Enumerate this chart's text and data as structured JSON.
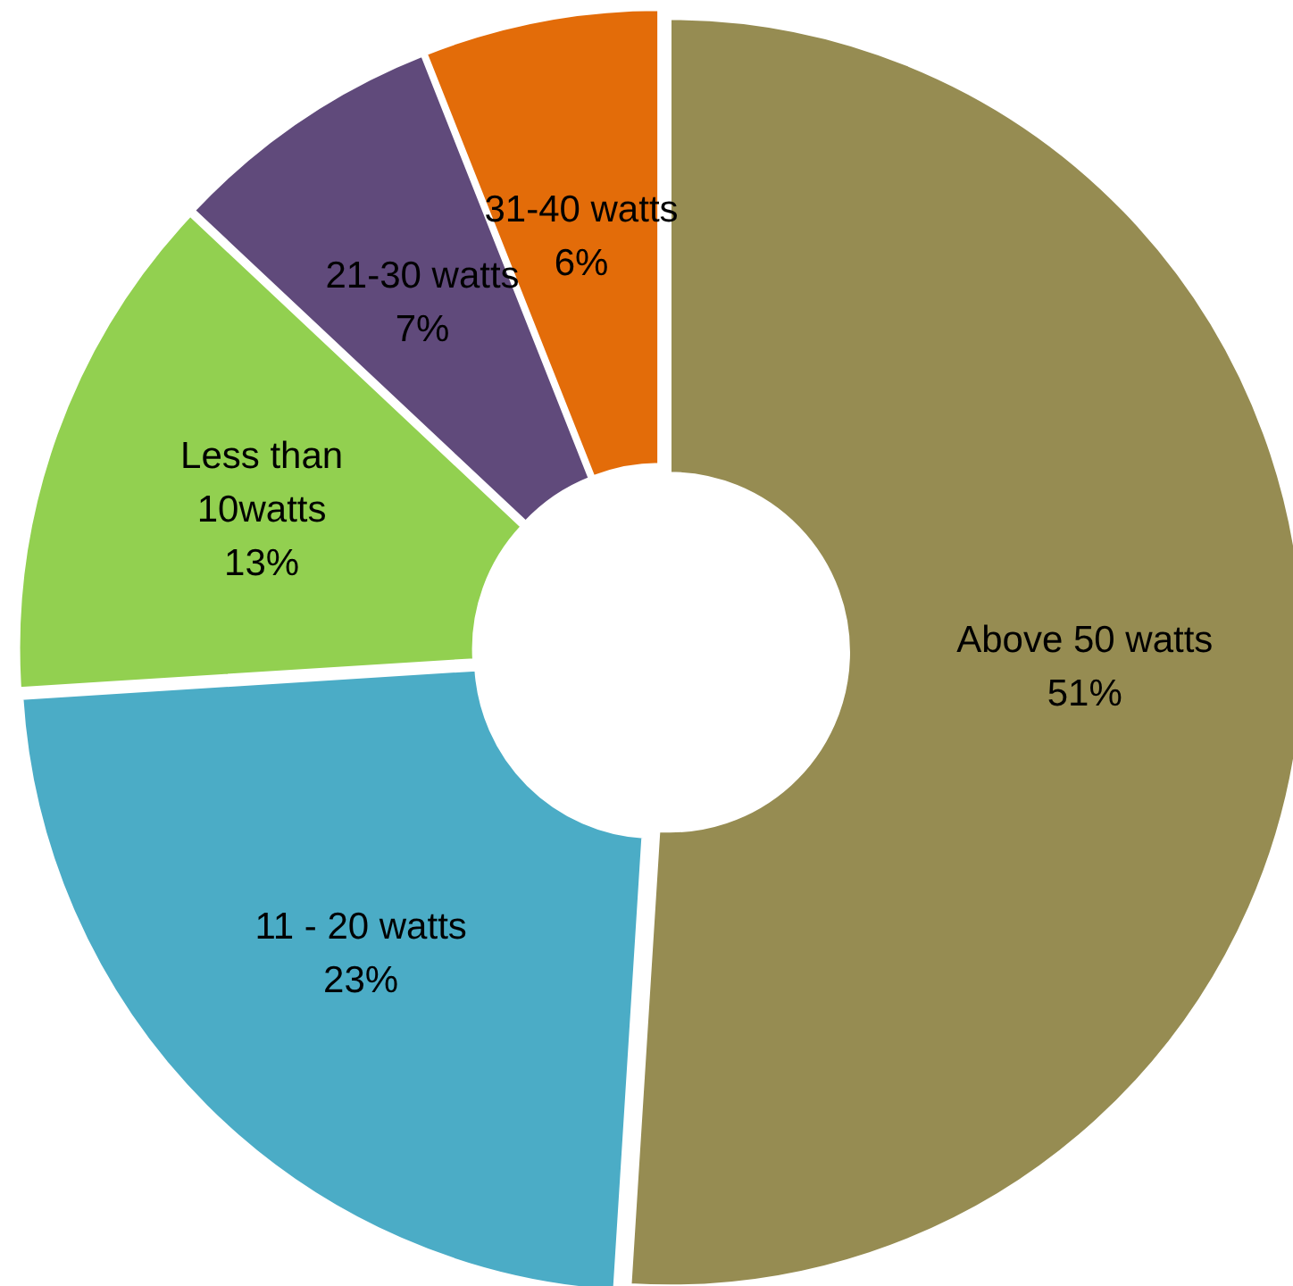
{
  "chart_data": {
    "type": "donut",
    "categories": [
      "Above 50 watts",
      "11 - 20 watts",
      "Less than 10watts",
      "21-30 watts",
      "31-40 watts"
    ],
    "values": [
      51,
      23,
      13,
      7,
      6
    ],
    "value_labels": [
      "51%",
      "23%",
      "13%",
      "7%",
      "6%"
    ],
    "colors": [
      "#968c52",
      "#4bacc6",
      "#92d050",
      "#604a7b",
      "#e36c09"
    ],
    "legend": false
  }
}
